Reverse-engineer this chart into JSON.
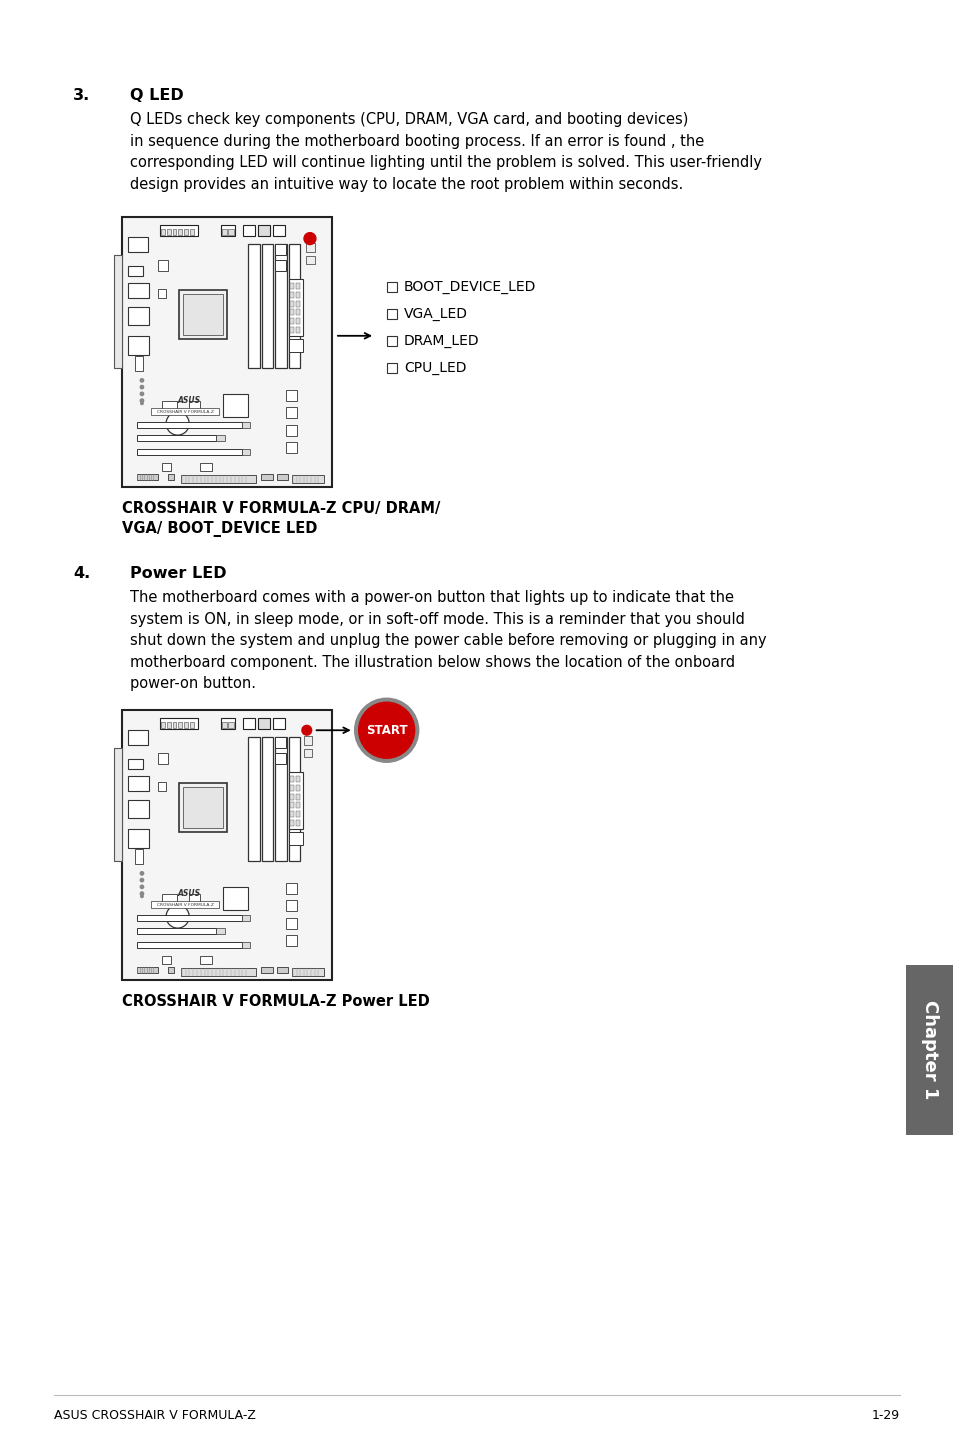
{
  "bg_color": "#ffffff",
  "text_color": "#000000",
  "section3_num": "3.",
  "section3_title": "Q LED",
  "section3_body": "Q LEDs check key components (CPU, DRAM, VGA card, and booting devices)\nin sequence during the motherboard booting process. If an error is found , the\ncorresponding LED will continue lighting until the problem is solved. This user-friendly\ndesign provides an intuitive way to locate the root problem within seconds.",
  "fig1_caption_bold": "CROSSHAIR V FORMULA-Z CPU/ DRAM/\nVGA/ BOOT_DEVICE LED",
  "led_labels": [
    "BOOT_DEVICE_LED",
    "VGA_LED",
    "DRAM_LED",
    "CPU_LED"
  ],
  "section4_num": "4.",
  "section4_title": "Power LED",
  "section4_body": "The motherboard comes with a power-on button that lights up to indicate that the\nsystem is ON, in sleep mode, or in soft-off mode. This is a reminder that you should\nshut down the system and unplug the power cable before removing or plugging in any\nmotherboard component. The illustration below shows the location of the onboard\npower-on button.",
  "fig2_caption_bold": "CROSSHAIR V FORMULA-Z Power LED",
  "start_button_color": "#cc0000",
  "start_button_text": "START",
  "footer_left": "ASUS CROSSHAIR V FORMULA-Z",
  "footer_right": "1-29",
  "chapter_tab_text": "Chapter 1",
  "chapter_tab_bg": "#666666",
  "chapter_tab_text_color": "#ffffff"
}
